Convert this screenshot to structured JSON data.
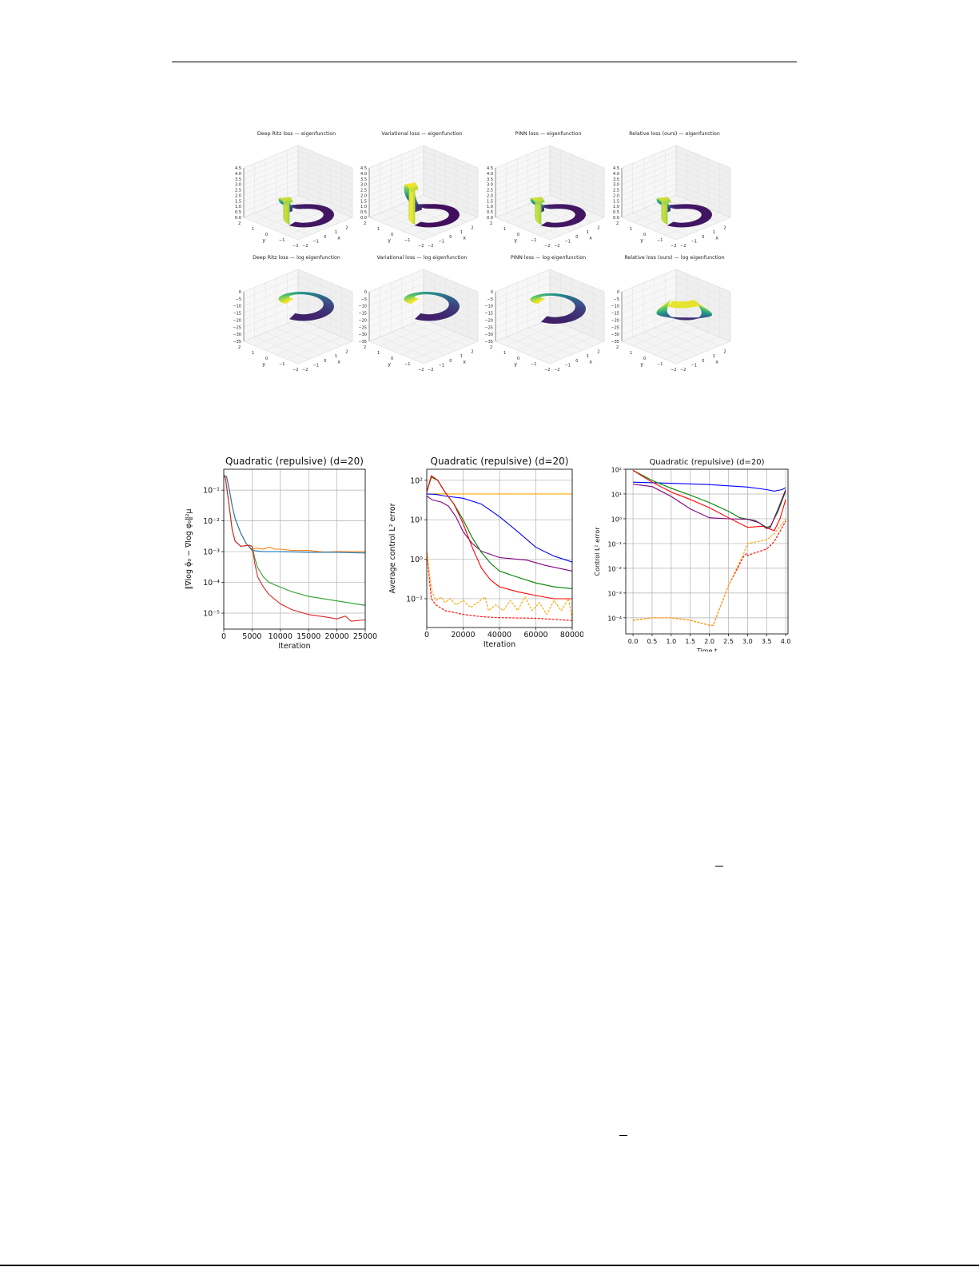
{
  "figure_top": {
    "panels": [
      {
        "title": "Deep Ritz loss — eigenfunction",
        "kind": "eigenfunction",
        "peak_value": 2.0,
        "z_ticks": [
          "0.0",
          "0.5",
          "1.0",
          "1.5",
          "2.0",
          "2.5",
          "3.0",
          "3.5",
          "4.0",
          "4.5"
        ],
        "x_ticks": [
          "−2",
          "−1",
          "0",
          "1",
          "2",
          "3"
        ],
        "y_ticks": [
          "−2",
          "−1",
          "0",
          "1",
          "2"
        ],
        "x_label": "x",
        "y_label": "y"
      },
      {
        "title": "Variational loss — eigenfunction",
        "kind": "eigenfunction",
        "peak_value": 3.3,
        "z_ticks": [
          "0.0",
          "0.5",
          "1.0",
          "1.5",
          "2.0",
          "2.5",
          "3.0",
          "3.5",
          "4.0",
          "4.5"
        ],
        "x_ticks": [
          "−2",
          "−1",
          "0",
          "1",
          "2",
          "3"
        ],
        "y_ticks": [
          "−2",
          "−1",
          "0",
          "1",
          "2"
        ],
        "x_label": "x",
        "y_label": "y"
      },
      {
        "title": "PINN loss — eigenfunction",
        "kind": "eigenfunction",
        "peak_value": 2.0,
        "z_ticks": [
          "0.0",
          "0.5",
          "1.0",
          "1.5",
          "2.0",
          "2.5",
          "3.0",
          "3.5",
          "4.0",
          "4.5"
        ],
        "x_ticks": [
          "−2",
          "−1",
          "0",
          "1",
          "2",
          "3"
        ],
        "y_ticks": [
          "−2",
          "−1",
          "0",
          "1",
          "2"
        ],
        "x_label": "x",
        "y_label": "y"
      },
      {
        "title": "Relative loss (ours) — eigenfunction",
        "kind": "eigenfunction",
        "peak_value": 2.0,
        "z_ticks": [
          "0.0",
          "0.5",
          "1.0",
          "1.5",
          "2.0",
          "2.5",
          "3.0",
          "3.5",
          "4.0",
          "4.5"
        ],
        "x_ticks": [
          "−2",
          "−1",
          "0",
          "1",
          "2",
          "3"
        ],
        "y_ticks": [
          "−2",
          "−1",
          "0",
          "1",
          "2"
        ],
        "x_label": "x",
        "y_label": "y"
      },
      {
        "title": "Deep Ritz loss — log eigenfunction",
        "kind": "log",
        "min_value": -10,
        "z_ticks": [
          "−35",
          "−30",
          "−25",
          "−20",
          "−15",
          "−10",
          "−5",
          "0"
        ],
        "x_ticks": [
          "−2",
          "−1",
          "0",
          "1",
          "2",
          "3"
        ],
        "y_ticks": [
          "−2",
          "−1",
          "0",
          "1",
          "2"
        ],
        "x_label": "x",
        "y_label": "y"
      },
      {
        "title": "Variational loss — log eigenfunction",
        "kind": "log",
        "min_value": -10,
        "z_ticks": [
          "−35",
          "−30",
          "−25",
          "−20",
          "−15",
          "−10",
          "−5",
          "0"
        ],
        "x_ticks": [
          "−2",
          "−1",
          "0",
          "1",
          "2",
          "3"
        ],
        "y_ticks": [
          "−2",
          "−1",
          "0",
          "1",
          "2"
        ],
        "x_label": "x",
        "y_label": "y"
      },
      {
        "title": "PINN loss — log eigenfunction",
        "kind": "log",
        "min_value": -12,
        "z_ticks": [
          "−35",
          "−30",
          "−25",
          "−20",
          "−15",
          "−10",
          "−5",
          "0"
        ],
        "x_ticks": [
          "−2",
          "−1",
          "0",
          "1",
          "2",
          "3"
        ],
        "y_ticks": [
          "−2",
          "−1",
          "0",
          "1",
          "2"
        ],
        "x_label": "x",
        "y_label": "y"
      },
      {
        "title": "Relative loss (ours) — log eigenfunction",
        "kind": "log",
        "min_value": -25,
        "z_ticks": [
          "−35",
          "−30",
          "−25",
          "−20",
          "−15",
          "−10",
          "−5",
          "0"
        ],
        "x_ticks": [
          "−2",
          "−1",
          "0",
          "1",
          "2",
          "3"
        ],
        "y_ticks": [
          "−2",
          "−1",
          "0",
          "1",
          "2"
        ],
        "x_label": "x",
        "y_label": "y"
      }
    ]
  },
  "chart_data": [
    {
      "type": "line",
      "title": "Quadratic (repulsive) (d=20)",
      "xlabel": "Iteration",
      "ylabel": "‖∇log φ̂₀ − ∇log φ₀‖²μ",
      "xlim": [
        0,
        25000
      ],
      "ylim_log10": [
        -5.52,
        -0.32
      ],
      "yscale": "log",
      "grid": true,
      "x_ticks": [
        0,
        5000,
        10000,
        15000,
        20000,
        25000
      ],
      "x_tick_labels": [
        "0",
        "5000",
        "10000",
        "15000",
        "20000",
        "25000"
      ],
      "y_ticks": [
        0.1,
        0.01,
        0.001,
        0.0001,
        1e-05
      ],
      "y_tick_labels": [
        "10⁻¹",
        "10⁻²",
        "10⁻³",
        "10⁻⁴",
        "10⁻⁵"
      ],
      "series": [
        {
          "color": "#ff7f0e",
          "dash": false,
          "x": [
            0,
            500,
            1000,
            1500,
            2000,
            3000,
            4000,
            5000,
            6000,
            7000,
            8000,
            9000,
            10000,
            12000,
            15000,
            18000,
            20000,
            22000,
            25000
          ],
          "y": [
            0.3,
            0.28,
            0.1,
            0.03,
            0.012,
            0.004,
            0.0018,
            0.0012,
            0.0013,
            0.0012,
            0.0014,
            0.0012,
            0.0012,
            0.0011,
            0.0011,
            0.00095,
            0.001,
            0.001,
            0.001
          ]
        },
        {
          "color": "#1f77b4",
          "dash": false,
          "x": [
            0,
            500,
            1000,
            1500,
            2000,
            3000,
            4000,
            5000,
            7000,
            10000,
            15000,
            20000,
            25000
          ],
          "y": [
            0.3,
            0.28,
            0.1,
            0.03,
            0.012,
            0.004,
            0.0018,
            0.0011,
            0.001,
            0.001,
            0.00095,
            0.00095,
            0.0009
          ]
        },
        {
          "color": "#2ca02c",
          "dash": false,
          "x": [
            0,
            300,
            800,
            1500,
            2000,
            3000,
            4500,
            5000,
            5500,
            6000,
            7000,
            8000,
            10000,
            12000,
            15000,
            20000,
            24900,
            25000
          ],
          "y": [
            0.3,
            0.25,
            0.05,
            0.005,
            0.0022,
            0.0015,
            0.0016,
            0.0015,
            0.0006,
            0.0003,
            0.00015,
            0.0001,
            7e-05,
            5e-05,
            3.5e-05,
            2.5e-05,
            1.8e-05,
            2e-05
          ]
        },
        {
          "color": "#d62728",
          "dash": false,
          "x": [
            0,
            300,
            800,
            1500,
            2000,
            3000,
            4500,
            5000,
            5500,
            6000,
            7000,
            8000,
            10000,
            12000,
            15000,
            18000,
            20000,
            21500,
            22500,
            25000
          ],
          "y": [
            0.3,
            0.25,
            0.05,
            0.005,
            0.0022,
            0.0015,
            0.0016,
            0.0015,
            0.0004,
            0.00015,
            7e-05,
            4e-05,
            2e-05,
            1.3e-05,
            9e-06,
            7.5e-06,
            6.5e-06,
            8e-06,
            5.5e-06,
            6e-06
          ]
        }
      ]
    },
    {
      "type": "line",
      "title": "Quadratic (repulsive) (d=20)",
      "xlabel": "Iteration",
      "ylabel": "Average control L² error",
      "xlim": [
        0,
        80000
      ],
      "ylim_log10": [
        -1.73,
        2.28
      ],
      "yscale": "log",
      "grid": true,
      "x_ticks": [
        0,
        20000,
        40000,
        60000,
        80000
      ],
      "x_tick_labels": [
        "0",
        "20000",
        "40000",
        "60000",
        "80000"
      ],
      "y_ticks": [
        100,
        10,
        1,
        0.1
      ],
      "y_tick_labels": [
        "10²",
        "10¹",
        "10⁰",
        "10⁻¹"
      ],
      "series": [
        {
          "color": "#ffa500",
          "dash": false,
          "x": [
            0,
            80000
          ],
          "y": [
            45,
            45
          ]
        },
        {
          "color": "#0000ff",
          "dash": false,
          "x": [
            0,
            5000,
            10000,
            20000,
            30000,
            40000,
            50000,
            60000,
            70000,
            80000
          ],
          "y": [
            45,
            44,
            40,
            35,
            25,
            12,
            5,
            2,
            1.2,
            0.85
          ]
        },
        {
          "color": "#800080",
          "dash": false,
          "x": [
            0,
            3000,
            8000,
            12000,
            16000,
            20000,
            25000,
            30000,
            40000,
            55000,
            65000,
            80000
          ],
          "y": [
            40,
            32,
            28,
            22,
            12,
            5,
            2.5,
            1.6,
            1.1,
            0.95,
            0.7,
            0.5
          ]
        },
        {
          "color": "#008000",
          "dash": false,
          "x": [
            0,
            2500,
            6000,
            10000,
            15000,
            20000,
            25000,
            30000,
            35000,
            40000,
            50000,
            60000,
            70000,
            80000
          ],
          "y": [
            50,
            120,
            100,
            50,
            25,
            10,
            3.5,
            1.5,
            0.8,
            0.5,
            0.35,
            0.25,
            0.2,
            0.18
          ]
        },
        {
          "color": "#ff0000",
          "dash": false,
          "x": [
            0,
            2500,
            6000,
            10000,
            15000,
            20000,
            25000,
            30000,
            35000,
            40000,
            50000,
            60000,
            70000,
            80000
          ],
          "y": [
            50,
            130,
            100,
            50,
            25,
            8,
            2,
            0.6,
            0.3,
            0.2,
            0.15,
            0.12,
            0.1,
            0.1
          ]
        },
        {
          "color": "#ff0000",
          "dash": true,
          "x": [
            0,
            1000,
            2500,
            5000,
            10000,
            20000,
            30000,
            40000,
            60000,
            80000
          ],
          "y": [
            1.5,
            0.5,
            0.1,
            0.07,
            0.05,
            0.04,
            0.035,
            0.033,
            0.032,
            0.028
          ]
        },
        {
          "color": "#ffa500",
          "dash": true,
          "x": [
            0,
            1500,
            3000,
            5000,
            8000,
            10000,
            13000,
            16000,
            20000,
            24000,
            28000,
            32000,
            34000,
            38000,
            42000,
            46000,
            50000,
            54000,
            58000,
            62000,
            66000,
            70000,
            74000,
            78000,
            80000
          ],
          "y": [
            1.6,
            0.4,
            0.15,
            0.09,
            0.11,
            0.08,
            0.1,
            0.07,
            0.09,
            0.06,
            0.08,
            0.11,
            0.05,
            0.07,
            0.05,
            0.09,
            0.05,
            0.11,
            0.05,
            0.08,
            0.04,
            0.09,
            0.05,
            0.1,
            0.03
          ]
        }
      ]
    },
    {
      "type": "line",
      "title": "Quadratic (repulsive) (d=20)",
      "xlabel": "Time t",
      "ylabel": "Control L² error",
      "xlim": [
        -0.19,
        4.06
      ],
      "ylim_log10": [
        -4.65,
        2
      ],
      "yscale": "log",
      "grid": true,
      "x_ticks": [
        0,
        0.5,
        1,
        1.5,
        2,
        2.5,
        3,
        3.5,
        4
      ],
      "x_tick_labels": [
        "0.0",
        "0.5",
        "1.0",
        "1.5",
        "2.0",
        "2.5",
        "3.0",
        "3.5",
        "4.0"
      ],
      "y_ticks": [
        100,
        10,
        1,
        0.1,
        0.01,
        0.001,
        0.0001
      ],
      "y_tick_labels": [
        "10²",
        "10¹",
        "10⁰",
        "10⁻¹",
        "10⁻²",
        "10⁻³",
        "10⁻⁴"
      ],
      "series": [
        {
          "color": "#0000ff",
          "dash": false,
          "x": [
            0,
            1,
            2,
            3,
            3.5,
            3.7,
            3.9,
            4
          ],
          "y": [
            30,
            27,
            24,
            19,
            15,
            13,
            15,
            18
          ]
        },
        {
          "color": "#008000",
          "dash": false,
          "x": [
            0,
            0.5,
            1,
            1.5,
            2,
            2.5,
            2.8,
            3.2,
            3.5,
            3.6,
            3.8,
            4
          ],
          "y": [
            90,
            35,
            17,
            9,
            4.5,
            2,
            1.1,
            0.85,
            0.45,
            0.5,
            2,
            13
          ]
        },
        {
          "color": "#ff0000",
          "dash": false,
          "x": [
            0,
            0.5,
            1,
            1.5,
            2,
            2.5,
            3,
            3.4,
            3.7,
            3.85,
            4
          ],
          "y": [
            90,
            30,
            12,
            6,
            2.8,
            1.1,
            0.45,
            0.5,
            0.33,
            1,
            6
          ]
        },
        {
          "color": "#800080",
          "dash": false,
          "x": [
            0,
            0.5,
            1,
            1.5,
            2,
            2.5,
            3,
            3.3,
            3.5,
            3.6,
            3.8,
            4
          ],
          "y": [
            25,
            20,
            8,
            2.5,
            1.1,
            1,
            0.95,
            0.7,
            0.4,
            0.45,
            2.5,
            15
          ]
        },
        {
          "color": "#ff0000",
          "dash": true,
          "x": [
            0,
            0.5,
            1,
            1.5,
            2,
            2.1,
            2.5,
            2.9,
            2.97,
            3,
            3.5,
            3.7,
            4
          ],
          "y": [
            8e-05,
            0.0001,
            0.0001,
            8e-05,
            5e-05,
            5e-05,
            0.002,
            0.03,
            0.04,
            0.033,
            0.06,
            0.12,
            0.8
          ]
        },
        {
          "color": "#ffa500",
          "dash": true,
          "x": [
            0,
            0.5,
            1,
            1.5,
            2,
            2.1,
            2.5,
            2.9,
            3,
            3.5,
            3.7,
            4
          ],
          "y": [
            8e-05,
            0.0001,
            0.0001,
            8e-05,
            5e-05,
            5e-05,
            0.002,
            0.04,
            0.1,
            0.14,
            0.25,
            0.95
          ]
        }
      ]
    }
  ]
}
